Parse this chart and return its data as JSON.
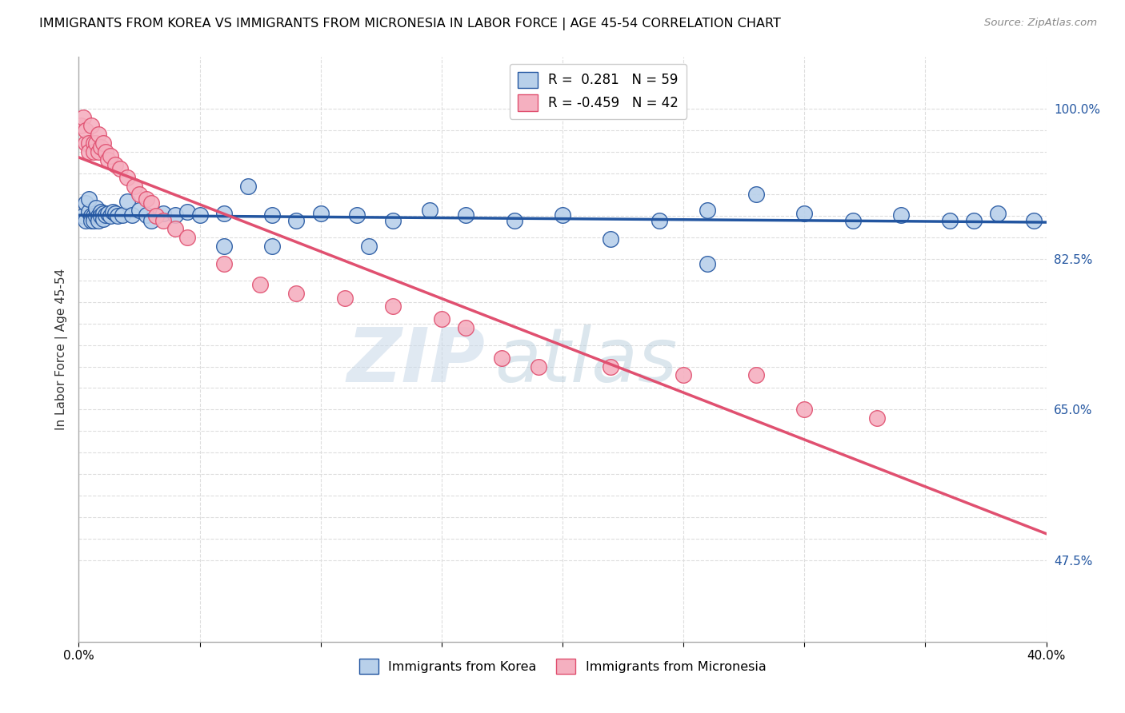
{
  "title": "IMMIGRANTS FROM KOREA VS IMMIGRANTS FROM MICRONESIA IN LABOR FORCE | AGE 45-54 CORRELATION CHART",
  "source": "Source: ZipAtlas.com",
  "ylabel": "In Labor Force | Age 45-54",
  "xmin": 0.0,
  "xmax": 0.4,
  "ymin": 0.38,
  "ymax": 1.06,
  "korea_R": 0.281,
  "korea_N": 59,
  "micronesia_R": -0.459,
  "micronesia_N": 42,
  "korea_color": "#b8d0ea",
  "micronesia_color": "#f5b0c0",
  "korea_line_color": "#2255a0",
  "micronesia_line_color": "#e05070",
  "korea_x": [
    0.002,
    0.003,
    0.003,
    0.004,
    0.004,
    0.005,
    0.005,
    0.006,
    0.006,
    0.007,
    0.007,
    0.008,
    0.008,
    0.009,
    0.009,
    0.01,
    0.01,
    0.011,
    0.012,
    0.013,
    0.014,
    0.015,
    0.016,
    0.018,
    0.02,
    0.022,
    0.025,
    0.028,
    0.03,
    0.035,
    0.04,
    0.045,
    0.05,
    0.06,
    0.07,
    0.08,
    0.09,
    0.1,
    0.115,
    0.13,
    0.145,
    0.16,
    0.18,
    0.2,
    0.22,
    0.24,
    0.26,
    0.28,
    0.3,
    0.32,
    0.34,
    0.36,
    0.38,
    0.395,
    0.06,
    0.08,
    0.12,
    0.26,
    0.37
  ],
  "korea_y": [
    0.875,
    0.87,
    0.89,
    0.88,
    0.895,
    0.875,
    0.87,
    0.875,
    0.87,
    0.875,
    0.885,
    0.875,
    0.87,
    0.88,
    0.875,
    0.878,
    0.872,
    0.876,
    0.878,
    0.875,
    0.88,
    0.878,
    0.875,
    0.876,
    0.892,
    0.876,
    0.882,
    0.876,
    0.87,
    0.878,
    0.876,
    0.88,
    0.876,
    0.878,
    0.91,
    0.876,
    0.87,
    0.878,
    0.876,
    0.87,
    0.882,
    0.876,
    0.87,
    0.876,
    0.848,
    0.87,
    0.882,
    0.9,
    0.878,
    0.87,
    0.876,
    0.87,
    0.878,
    0.87,
    0.84,
    0.84,
    0.84,
    0.82,
    0.87
  ],
  "micronesia_x": [
    0.001,
    0.002,
    0.003,
    0.003,
    0.004,
    0.004,
    0.005,
    0.006,
    0.006,
    0.007,
    0.008,
    0.008,
    0.009,
    0.01,
    0.011,
    0.012,
    0.013,
    0.015,
    0.017,
    0.02,
    0.023,
    0.025,
    0.028,
    0.03,
    0.032,
    0.035,
    0.04,
    0.045,
    0.06,
    0.075,
    0.09,
    0.11,
    0.13,
    0.15,
    0.16,
    0.175,
    0.19,
    0.22,
    0.25,
    0.28,
    0.3,
    0.33
  ],
  "micronesia_y": [
    0.98,
    0.99,
    0.96,
    0.975,
    0.96,
    0.95,
    0.98,
    0.96,
    0.95,
    0.96,
    0.97,
    0.95,
    0.955,
    0.96,
    0.95,
    0.94,
    0.945,
    0.935,
    0.93,
    0.92,
    0.91,
    0.9,
    0.895,
    0.89,
    0.875,
    0.87,
    0.86,
    0.85,
    0.82,
    0.795,
    0.785,
    0.78,
    0.77,
    0.755,
    0.745,
    0.71,
    0.7,
    0.7,
    0.69,
    0.69,
    0.65,
    0.64
  ],
  "watermark_zip": "ZIP",
  "watermark_atlas": "atlas",
  "background_color": "#ffffff",
  "grid_color": "#dddddd",
  "grid_color2": "#cccccc"
}
